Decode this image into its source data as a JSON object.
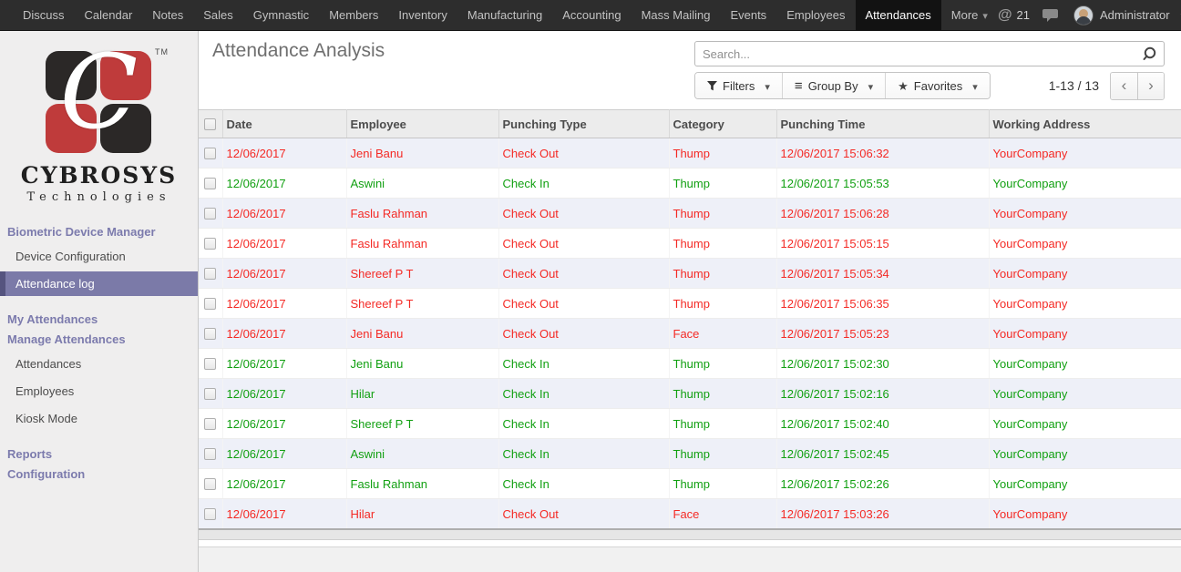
{
  "nav": {
    "items": [
      {
        "label": "Discuss"
      },
      {
        "label": "Calendar"
      },
      {
        "label": "Notes"
      },
      {
        "label": "Sales"
      },
      {
        "label": "Gymnastic"
      },
      {
        "label": "Members"
      },
      {
        "label": "Inventory"
      },
      {
        "label": "Manufacturing"
      },
      {
        "label": "Accounting"
      },
      {
        "label": "Mass Mailing"
      },
      {
        "label": "Events"
      },
      {
        "label": "Employees"
      },
      {
        "label": "Attendances",
        "active": true
      },
      {
        "label": "More",
        "dropdown": true
      }
    ],
    "right": {
      "mention_count": "21",
      "user_name": "Administrator"
    }
  },
  "sidebar": {
    "logo": {
      "letter": "C",
      "tm": "TM",
      "name": "CYBROSYS",
      "tagline": "Technologies"
    },
    "items": [
      {
        "type": "header",
        "label": "Biometric Device Manager"
      },
      {
        "type": "item",
        "label": "Device Configuration"
      },
      {
        "type": "item",
        "label": "Attendance log",
        "selected": true
      },
      {
        "type": "header",
        "label": "My Attendances"
      },
      {
        "type": "header",
        "label": "Manage Attendances"
      },
      {
        "type": "item",
        "label": "Attendances"
      },
      {
        "type": "item",
        "label": "Employees"
      },
      {
        "type": "item",
        "label": "Kiosk Mode"
      },
      {
        "type": "header",
        "label": "Reports"
      },
      {
        "type": "header",
        "label": "Configuration"
      }
    ]
  },
  "content": {
    "title": "Attendance Analysis",
    "search": {
      "placeholder": "Search..."
    },
    "controls": {
      "filters": "Filters",
      "group_by": "Group By",
      "favorites": "Favorites"
    },
    "pager": {
      "range": "1-13 / 13",
      "prev": "‹",
      "next": "›"
    }
  },
  "table": {
    "columns": [
      "Date",
      "Employee",
      "Punching Type",
      "Category",
      "Punching Time",
      "Working Address"
    ],
    "rows": [
      {
        "date": "12/06/2017",
        "employee": "Jeni Banu",
        "punching_type": "Check Out",
        "category": "Thump",
        "punching_time": "12/06/2017 15:06:32",
        "working_address": "YourCompany",
        "status": "out"
      },
      {
        "date": "12/06/2017",
        "employee": "Aswini",
        "punching_type": "Check In",
        "category": "Thump",
        "punching_time": "12/06/2017 15:05:53",
        "working_address": "YourCompany",
        "status": "in"
      },
      {
        "date": "12/06/2017",
        "employee": "Faslu Rahman",
        "punching_type": "Check Out",
        "category": "Thump",
        "punching_time": "12/06/2017 15:06:28",
        "working_address": "YourCompany",
        "status": "out"
      },
      {
        "date": "12/06/2017",
        "employee": "Faslu Rahman",
        "punching_type": "Check Out",
        "category": "Thump",
        "punching_time": "12/06/2017 15:05:15",
        "working_address": "YourCompany",
        "status": "out"
      },
      {
        "date": "12/06/2017",
        "employee": "Shereef P T",
        "punching_type": "Check Out",
        "category": "Thump",
        "punching_time": "12/06/2017 15:05:34",
        "working_address": "YourCompany",
        "status": "out"
      },
      {
        "date": "12/06/2017",
        "employee": "Shereef P T",
        "punching_type": "Check Out",
        "category": "Thump",
        "punching_time": "12/06/2017 15:06:35",
        "working_address": "YourCompany",
        "status": "out"
      },
      {
        "date": "12/06/2017",
        "employee": "Jeni Banu",
        "punching_type": "Check Out",
        "category": "Face",
        "punching_time": "12/06/2017 15:05:23",
        "working_address": "YourCompany",
        "status": "out"
      },
      {
        "date": "12/06/2017",
        "employee": "Jeni Banu",
        "punching_type": "Check In",
        "category": "Thump",
        "punching_time": "12/06/2017 15:02:30",
        "working_address": "YourCompany",
        "status": "in"
      },
      {
        "date": "12/06/2017",
        "employee": "Hilar",
        "punching_type": "Check In",
        "category": "Thump",
        "punching_time": "12/06/2017 15:02:16",
        "working_address": "YourCompany",
        "status": "in"
      },
      {
        "date": "12/06/2017",
        "employee": "Shereef P T",
        "punching_type": "Check In",
        "category": "Thump",
        "punching_time": "12/06/2017 15:02:40",
        "working_address": "YourCompany",
        "status": "in"
      },
      {
        "date": "12/06/2017",
        "employee": "Aswini",
        "punching_type": "Check In",
        "category": "Thump",
        "punching_time": "12/06/2017 15:02:45",
        "working_address": "YourCompany",
        "status": "in"
      },
      {
        "date": "12/06/2017",
        "employee": "Faslu Rahman",
        "punching_type": "Check In",
        "category": "Thump",
        "punching_time": "12/06/2017 15:02:26",
        "working_address": "YourCompany",
        "status": "in"
      },
      {
        "date": "12/06/2017",
        "employee": "Hilar",
        "punching_type": "Check Out",
        "category": "Face",
        "punching_time": "12/06/2017 15:03:26",
        "working_address": "YourCompany",
        "status": "out"
      }
    ]
  },
  "colors": {
    "topnav_bg": "#2d2d2d",
    "topnav_active_bg": "#121212",
    "sidebar_bg": "#efeeee",
    "sidebar_heading_purple": "#7c7bad",
    "sidebar_selected_bg": "#7b7aa8",
    "row_stripe_lavender": "#eef0f8",
    "check_in_green": "#12a012",
    "check_out_red": "#f42a25",
    "logo_red": "#bf3b3b",
    "logo_black": "#2b2827"
  }
}
